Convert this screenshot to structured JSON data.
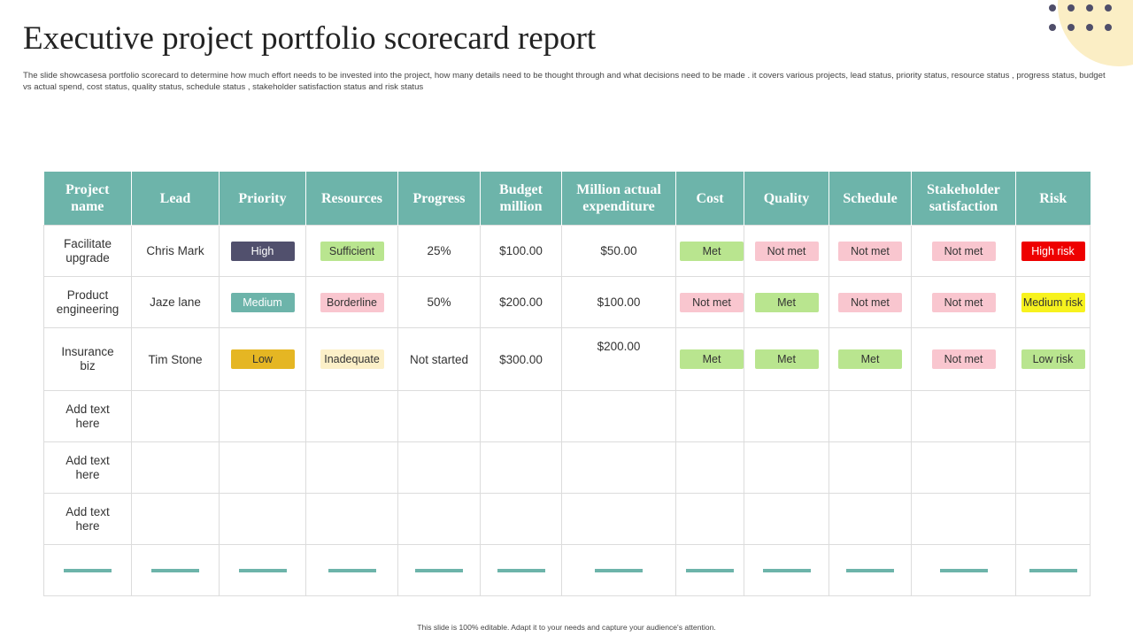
{
  "slide": {
    "title": "Executive project portfolio scorecard report",
    "subtitle": "The slide showcasesa portfolio scorecard  to determine how much effort needs to be invested into the project, how many details need to be thought through and what decisions need to be made  . it covers various projects, lead status, priority status, resource status , progress status,  budget vs actual spend, cost status, quality status, schedule status , stakeholder satisfaction status and risk status",
    "footer": "This slide is 100% editable. Adapt it to your needs and capture your audience's attention."
  },
  "colors": {
    "header_bg": "#6db4aa",
    "decor_circle": "#fbeec5",
    "decor_dots": "#4f4e6a"
  },
  "table": {
    "headers": [
      "Project name",
      "Lead",
      "Priority",
      "Resources",
      "Progress",
      "Budget million",
      "Million actual expenditure",
      "Cost",
      "Quality",
      "Schedule",
      "Stakeholder satisfaction",
      "Risk"
    ],
    "rows": [
      {
        "project": "Facilitate upgrade",
        "lead": "Chris Mark",
        "priority": {
          "label": "High",
          "bg": "#51506d",
          "fg": "#ffffff"
        },
        "resources": {
          "label": "Sufficient",
          "bg": "#b9e58f",
          "fg": "#333333"
        },
        "progress": "25%",
        "budget": "$100.00",
        "actual": "$50.00",
        "cost": {
          "label": "Met",
          "bg": "#b9e58f",
          "fg": "#333333"
        },
        "quality": {
          "label": "Not met",
          "bg": "#f9c6cf",
          "fg": "#333333"
        },
        "schedule": {
          "label": "Not met",
          "bg": "#f9c6cf",
          "fg": "#333333"
        },
        "stakeholder": {
          "label": "Not met",
          "bg": "#f9c6cf",
          "fg": "#333333"
        },
        "risk": {
          "label": "High risk",
          "bg": "#ee0000",
          "fg": "#ffffff"
        }
      },
      {
        "project": "Product engineering",
        "lead": "Jaze lane",
        "priority": {
          "label": "Medium",
          "bg": "#6db4aa",
          "fg": "#ffffff"
        },
        "resources": {
          "label": "Borderline",
          "bg": "#f9c6cf",
          "fg": "#333333"
        },
        "progress": "50%",
        "budget": "$200.00",
        "actual": "$100.00",
        "cost": {
          "label": "Not met",
          "bg": "#f9c6cf",
          "fg": "#333333"
        },
        "quality": {
          "label": "Met",
          "bg": "#b9e58f",
          "fg": "#333333"
        },
        "schedule": {
          "label": "Not met",
          "bg": "#f9c6cf",
          "fg": "#333333"
        },
        "stakeholder": {
          "label": "Not met",
          "bg": "#f9c6cf",
          "fg": "#333333"
        },
        "risk": {
          "label": "Medium risk",
          "bg": "#f7f21e",
          "fg": "#333333"
        }
      },
      {
        "project": "Insurance biz",
        "lead": "Tim Stone",
        "priority": {
          "label": "Low",
          "bg": "#e5b623",
          "fg": "#333333"
        },
        "resources": {
          "label": "Inadequate",
          "bg": "#fcf0c8",
          "fg": "#333333"
        },
        "progress": "Not started",
        "budget": "$300.00",
        "actual": "$200.00",
        "cost": {
          "label": "Met",
          "bg": "#b9e58f",
          "fg": "#333333"
        },
        "quality": {
          "label": "Met",
          "bg": "#b9e58f",
          "fg": "#333333"
        },
        "schedule": {
          "label": "Met",
          "bg": "#b9e58f",
          "fg": "#333333"
        },
        "stakeholder": {
          "label": "Not met",
          "bg": "#f9c6cf",
          "fg": "#333333"
        },
        "risk": {
          "label": "Low risk",
          "bg": "#b9e58f",
          "fg": "#333333"
        }
      },
      {
        "project": "Add text here"
      },
      {
        "project": "Add text here"
      },
      {
        "project": "Add text here"
      }
    ]
  }
}
